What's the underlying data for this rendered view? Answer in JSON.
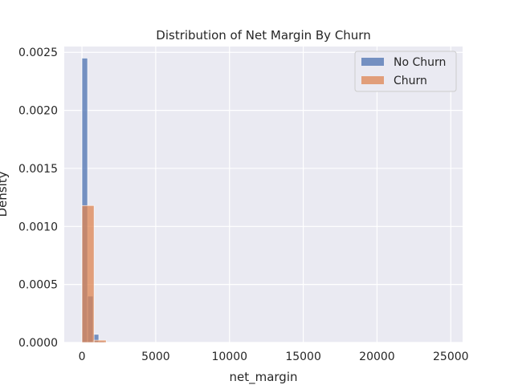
{
  "chart_data": {
    "type": "histogram",
    "title": "Distribution of Net Margin By Churn",
    "xlabel": "net_margin",
    "ylabel": "Density",
    "xlim": [
      -1200,
      25800
    ],
    "ylim": [
      0,
      0.00255
    ],
    "xticks": [
      0,
      5000,
      10000,
      15000,
      20000,
      25000
    ],
    "xtick_labels": [
      "0",
      "5000",
      "10000",
      "15000",
      "20000",
      "25000"
    ],
    "yticks": [
      0,
      0.0005,
      0.001,
      0.0015,
      0.002,
      0.0025
    ],
    "ytick_labels": [
      "0.0000",
      "0.0005",
      "0.0010",
      "0.0015",
      "0.0020",
      "0.0025"
    ],
    "grid": true,
    "legend_position": "top-right",
    "series": [
      {
        "name": "No Churn",
        "color": "#4c72b0",
        "bins": [
          {
            "x0": 0,
            "x1": 380,
            "density": 0.00245
          },
          {
            "x0": 380,
            "x1": 760,
            "density": 0.0004
          },
          {
            "x0": 760,
            "x1": 1140,
            "density": 7e-05
          },
          {
            "x0": 1140,
            "x1": 1520,
            "density": 1e-05
          }
        ]
      },
      {
        "name": "Churn",
        "color": "#dd8452",
        "bins": [
          {
            "x0": 0,
            "x1": 820,
            "density": 0.00118
          },
          {
            "x0": 820,
            "x1": 1640,
            "density": 2e-05
          }
        ]
      }
    ]
  }
}
